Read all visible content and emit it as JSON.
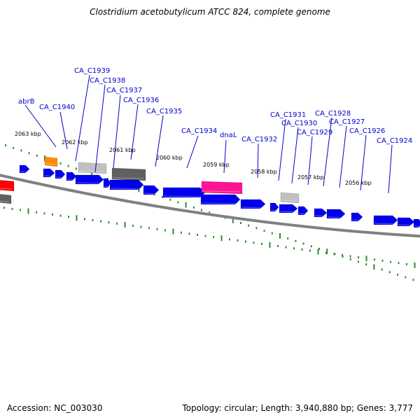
{
  "title": "Clostridium acetobutylicum ATCC 824, complete genome",
  "footer": {
    "accession": "Accession: NC_003030",
    "summary": "Topology: circular; Length: 3,940,880 bp; Genes: 3,777"
  },
  "colors": {
    "gene": "#0000ee",
    "backbone": "#808080",
    "tick": "#2e8b2e",
    "label": "#0000cc",
    "highlight": "#ff1493",
    "orange": "#ff8c00",
    "red": "#ff0000",
    "light_gray": "#c0c0c0",
    "dark_gray": "#606060"
  },
  "kbp_labels": [
    "2063 kbp",
    "2062 kbp",
    "2061 kbp",
    "2060 kbp",
    "2059 kbp",
    "2058 kbp",
    "2057 kbp",
    "2056 kbp"
  ],
  "gene_labels": [
    "abrB",
    "CA_C1940",
    "CA_C1939",
    "CA_C1938",
    "CA_C1937",
    "CA_C1936",
    "CA_C1935",
    "CA_C1934",
    "dnaL",
    "CA_C1932",
    "CA_C1931",
    "CA_C1930",
    "CA_C1929",
    "CA_C1928",
    "CA_C1927",
    "CA_C1926",
    "CA_C1924"
  ]
}
